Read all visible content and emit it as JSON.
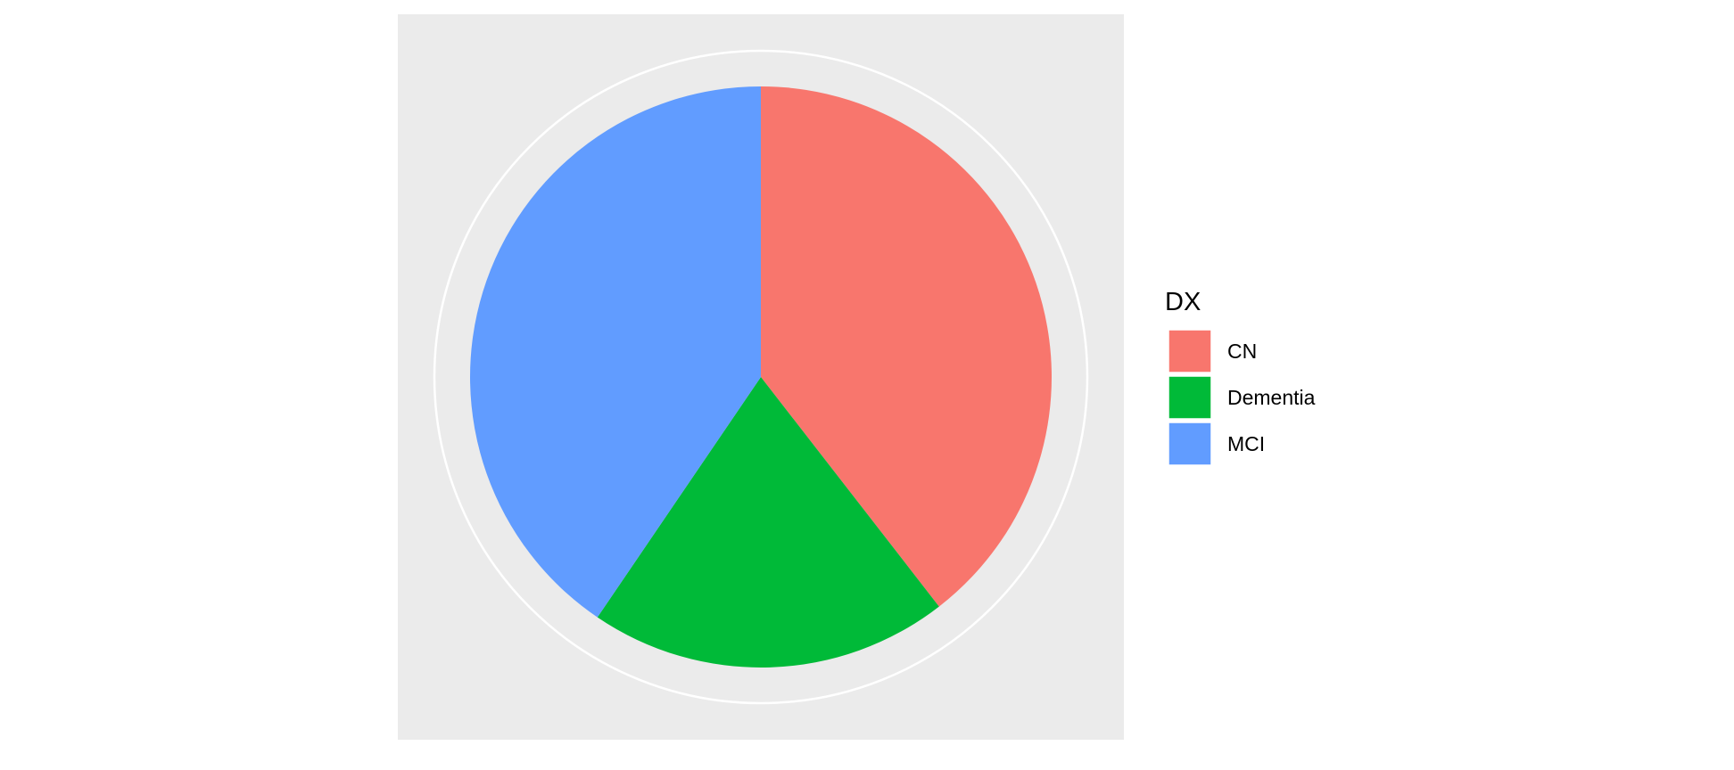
{
  "chart_data": {
    "type": "pie",
    "categories": [
      "CN",
      "Dementia",
      "MCI"
    ],
    "values": [
      39.5,
      20.0,
      40.5
    ],
    "colors": [
      "#F8766D",
      "#00BA38",
      "#619CFF"
    ],
    "legend": {
      "title": "DX",
      "placement": "right",
      "entries": [
        "CN",
        "Dementia",
        "MCI"
      ]
    },
    "panel_background": "#EBEBEB",
    "grid": true,
    "grid_color": "#FFFFFF",
    "start_angle_deg": 0,
    "direction": "clockwise"
  }
}
